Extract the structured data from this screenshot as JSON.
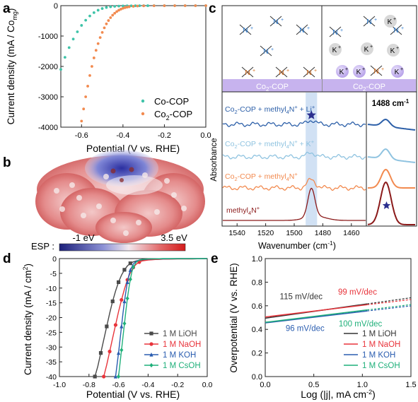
{
  "panels": {
    "a": "a",
    "b": "b",
    "c": "c",
    "d": "d",
    "e": "e"
  },
  "chart_data": [
    {
      "panel": "a",
      "type": "scatter",
      "xlabel": "Potential (V vs. RHE)",
      "ylabel": "Current density (mA / Co",
      "ylabel_sub": "mg",
      "ylabel_end": ")",
      "xlim": [
        -0.7,
        0.0
      ],
      "ylim": [
        -4000,
        0
      ],
      "xticks": [
        "-0.6",
        "-0.4",
        "-0.2",
        "0.0"
      ],
      "xtick_values": [
        -0.6,
        -0.4,
        -0.2,
        0.0
      ],
      "yticks": [
        "0",
        "-1000",
        "-2000",
        "-3000",
        "-4000"
      ],
      "ytick_values": [
        0,
        -1000,
        -2000,
        -3000,
        -4000
      ],
      "series": [
        {
          "name": "Co-COP",
          "color": "#3ec3a8",
          "x": [
            -0.7,
            -0.68,
            -0.66,
            -0.64,
            -0.62,
            -0.6,
            -0.58,
            -0.56,
            -0.54,
            -0.52,
            -0.5,
            -0.48,
            -0.46,
            -0.44,
            -0.42,
            -0.4,
            -0.38,
            -0.36,
            -0.34,
            -0.32,
            -0.3,
            -0.28,
            -0.25,
            -0.2,
            -0.15,
            -0.1,
            -0.05,
            0.0
          ],
          "y": [
            -2100,
            -1700,
            -1380,
            -1100,
            -860,
            -650,
            -480,
            -340,
            -230,
            -150,
            -95,
            -60,
            -38,
            -24,
            -15,
            -10,
            -7,
            -5,
            -4,
            -3,
            -2,
            -2,
            -1,
            -1,
            -1,
            0,
            0,
            0
          ]
        },
        {
          "name": "Co2-COP",
          "color": "#f28a4f",
          "x": [
            -0.6,
            -0.59,
            -0.58,
            -0.57,
            -0.56,
            -0.55,
            -0.54,
            -0.53,
            -0.52,
            -0.51,
            -0.5,
            -0.49,
            -0.48,
            -0.47,
            -0.46,
            -0.45,
            -0.44,
            -0.43,
            -0.42,
            -0.41,
            -0.4,
            -0.39,
            -0.38,
            -0.37,
            -0.35,
            -0.33,
            -0.3,
            -0.25,
            -0.2,
            -0.15,
            -0.1,
            -0.05,
            0.0
          ],
          "y": [
            -3800,
            -3400,
            -3000,
            -2650,
            -2300,
            -2000,
            -1720,
            -1470,
            -1250,
            -1050,
            -880,
            -730,
            -600,
            -490,
            -395,
            -315,
            -250,
            -195,
            -150,
            -115,
            -88,
            -66,
            -50,
            -38,
            -22,
            -13,
            -7,
            -3,
            -2,
            -1,
            0,
            0,
            0
          ]
        }
      ],
      "legend": [
        "Co-COP",
        "Co",
        "2",
        "-COP"
      ]
    },
    {
      "panel": "d",
      "type": "line",
      "xlabel": "Potential (V vs. RHE)",
      "ylabel": "Current density (mA / cm",
      "ylabel_sup": "2",
      "ylabel_end": ")",
      "xlim": [
        -1.0,
        0.0
      ],
      "ylim": [
        -40,
        0
      ],
      "xticks": [
        "-1.0",
        "-0.8",
        "-0.6",
        "-0.4",
        "-0.2",
        "0.0"
      ],
      "xtick_values": [
        -1.0,
        -0.8,
        -0.6,
        -0.4,
        -0.2,
        0.0
      ],
      "yticks": [
        "0",
        "-5",
        "-10",
        "-15",
        "-20",
        "-25",
        "-30",
        "-35",
        "-40"
      ],
      "ytick_values": [
        0,
        -5,
        -10,
        -15,
        -20,
        -25,
        -30,
        -35,
        -40
      ],
      "series": [
        {
          "name": "1 M LiOH",
          "color": "#4a4a4a",
          "marker": "square",
          "x": [
            -0.76,
            -0.74,
            -0.72,
            -0.7,
            -0.68,
            -0.66,
            -0.64,
            -0.62,
            -0.6,
            -0.58,
            -0.56,
            -0.54,
            -0.52,
            -0.5,
            -0.48,
            -0.46,
            -0.42,
            -0.36,
            -0.3,
            -0.2,
            -0.1,
            0.0
          ],
          "y": [
            -40,
            -36.5,
            -32,
            -27.5,
            -23,
            -18.5,
            -14.5,
            -11,
            -8,
            -5.6,
            -3.8,
            -2.5,
            -1.6,
            -1.1,
            -0.8,
            -0.6,
            -0.4,
            -0.3,
            -0.2,
            -0.1,
            -0.1,
            0
          ]
        },
        {
          "name": "1 M NaOH",
          "color": "#e8343b",
          "marker": "circle",
          "x": [
            -0.7,
            -0.68,
            -0.66,
            -0.64,
            -0.62,
            -0.6,
            -0.58,
            -0.56,
            -0.54,
            -0.52,
            -0.5,
            -0.48,
            -0.46,
            -0.44,
            -0.4,
            -0.35,
            -0.3,
            -0.2,
            -0.1,
            0.0
          ],
          "y": [
            -40,
            -36,
            -31.5,
            -27,
            -22.5,
            -18,
            -14,
            -10.3,
            -7.2,
            -4.8,
            -3.0,
            -1.9,
            -1.2,
            -0.8,
            -0.5,
            -0.3,
            -0.2,
            -0.1,
            -0.1,
            0
          ]
        },
        {
          "name": "1 M KOH",
          "color": "#2a5db0",
          "marker": "triangle",
          "x": [
            -0.62,
            -0.61,
            -0.6,
            -0.59,
            -0.58,
            -0.57,
            -0.56,
            -0.55,
            -0.54,
            -0.53,
            -0.52,
            -0.5,
            -0.48,
            -0.46,
            -0.44,
            -0.4,
            -0.35,
            -0.3,
            -0.2,
            -0.1,
            0.0
          ],
          "y": [
            -40,
            -36,
            -32,
            -27.5,
            -23,
            -18.5,
            -14.5,
            -11,
            -8,
            -5.7,
            -3.9,
            -1.8,
            -0.9,
            -0.5,
            -0.3,
            -0.2,
            -0.1,
            -0.1,
            0,
            0,
            0
          ]
        },
        {
          "name": "1 M CsOH",
          "color": "#1fb07a",
          "marker": "diamond",
          "x": [
            -0.6,
            -0.59,
            -0.58,
            -0.57,
            -0.56,
            -0.55,
            -0.54,
            -0.53,
            -0.52,
            -0.51,
            -0.5,
            -0.48,
            -0.46,
            -0.44,
            -0.42,
            -0.4,
            -0.35,
            -0.3,
            -0.2,
            -0.1,
            0.0
          ],
          "y": [
            -40,
            -35.5,
            -31,
            -26.5,
            -22,
            -17.5,
            -13.5,
            -10,
            -7,
            -4.6,
            -2.9,
            -1.2,
            -0.5,
            -0.3,
            -0.2,
            -0.1,
            -0.1,
            0,
            0,
            0,
            0
          ]
        }
      ]
    },
    {
      "panel": "e",
      "type": "line",
      "xlabel": "Log (|j|, mA cm",
      "xlabel_sup": "-2",
      "xlabel_end": ")",
      "ylabel": "Overpotential (V vs. RHE)",
      "xlim": [
        0.0,
        1.5
      ],
      "ylim": [
        0.0,
        1.0
      ],
      "xticks": [
        "0.0",
        "0.5",
        "1.0",
        "1.5"
      ],
      "xtick_values": [
        0.0,
        0.5,
        1.0,
        1.5
      ],
      "yticks": [
        "0.0",
        "0.2",
        "0.4",
        "0.6",
        "0.8",
        "1.0"
      ],
      "ytick_values": [
        0.0,
        0.2,
        0.4,
        0.6,
        0.8,
        1.0
      ],
      "series": [
        {
          "name": "1 M LiOH",
          "color": "#333333",
          "slope_label": "115 mV/dec",
          "x": [
            0.0,
            1.05
          ],
          "y": [
            0.495,
            0.616
          ],
          "ext": [
            1.5,
            0.668
          ]
        },
        {
          "name": "1 M NaOH",
          "color": "#e8343b",
          "slope_label": "99 mV/dec",
          "x": [
            0.0,
            1.05
          ],
          "y": [
            0.505,
            0.609
          ],
          "ext": [
            1.5,
            0.653
          ]
        },
        {
          "name": "1 M KOH",
          "color": "#2a5db0",
          "slope_label": "96 mV/dec",
          "x": [
            0.0,
            1.05
          ],
          "y": [
            0.455,
            0.556
          ],
          "ext": [
            1.5,
            0.599
          ]
        },
        {
          "name": "1 M CsOH",
          "color": "#1fb07a",
          "slope_label": "100 mV/dec",
          "x": [
            0.0,
            1.05
          ],
          "y": [
            0.46,
            0.565
          ],
          "ext": [
            1.5,
            0.61
          ]
        }
      ]
    },
    {
      "panel": "c",
      "type": "line",
      "xlabel": "Wavenumber (cm",
      "xlabel_sup": "-1",
      "xlabel_end": ")",
      "ylabel": "Absorbance",
      "xlim": [
        1550,
        1450
      ],
      "xticks": [
        "1540",
        "1520",
        "1500",
        "1480",
        "1460"
      ],
      "xtick_values": [
        1540,
        1520,
        1500,
        1480,
        1460
      ],
      "highlight_band": [
        1492,
        1484
      ],
      "inset_title": "1488 cm",
      "inset_title_sup": "-1",
      "series": [
        {
          "name": "Co2-COP + methyl4N+ + Li+",
          "color": "#2c5fa8"
        },
        {
          "name": "Co2-COP + methyl4N+ + K+",
          "color": "#8fc3e0"
        },
        {
          "name": "Co2-COP + methyl4N+",
          "color": "#f28a4f"
        },
        {
          "name": "methyl4N+",
          "color": "#8b1a1a"
        }
      ]
    }
  ],
  "panel_b": {
    "esp_label": "ESP :",
    "esp_min": "-1 eV",
    "esp_max": "3.5 eV"
  },
  "panel_c_schematic": {
    "substrate_left": "Co",
    "substrate_sub": "2",
    "substrate_end": "-COP",
    "cation_label": "N",
    "k_label": "K",
    "plus": "+"
  },
  "spectra_labels": {
    "li": {
      "pre": "Co",
      "sub": "2",
      "mid": "-COP + methyl",
      "sub2": "4",
      "n": "N",
      "sup": "+",
      "tail": " + Li",
      "sup2": "+"
    },
    "k": {
      "pre": "Co",
      "sub": "2",
      "mid": "-COP + methyl",
      "sub2": "4",
      "n": "N",
      "sup": "+",
      "tail": " + K",
      "sup2": "+"
    },
    "plain": {
      "pre": "Co",
      "sub": "2",
      "mid": "-COP + methyl",
      "sub2": "4",
      "n": "N",
      "sup": "+"
    },
    "methyl": {
      "mid": "methyl",
      "sub2": "4",
      "n": "N",
      "sup": "+"
    }
  },
  "colors": {
    "substrate": "#c7b3ee",
    "band": "#c9dcf2",
    "star": "#2b2f8f"
  }
}
